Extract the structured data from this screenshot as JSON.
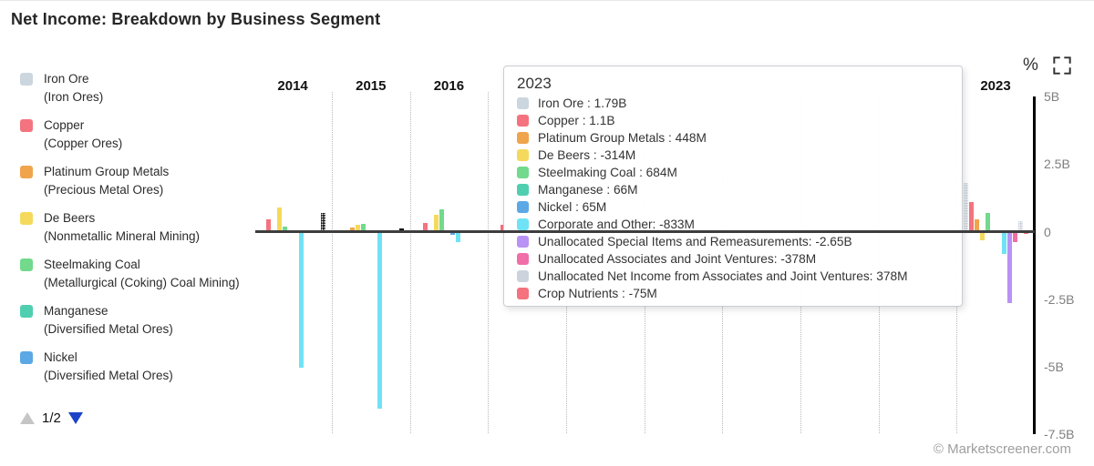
{
  "header": {
    "title": "Net Income: Breakdown by Business Segment"
  },
  "controls": {
    "percent_label": "%",
    "fullscreen_icon": "fullscreen-expand-icon"
  },
  "watermark": "© Marketscreener.com",
  "legend": {
    "page_indicator": "1/2",
    "items": [
      {
        "series": "Iron Ore",
        "sub": "(Iron Ores)"
      },
      {
        "series": "Copper",
        "sub": "(Copper Ores)"
      },
      {
        "series": "Platinum Group Metals",
        "sub": "(Precious Metal Ores)"
      },
      {
        "series": "De Beers",
        "sub": "(Nonmetallic Mineral Mining)"
      },
      {
        "series": "Steelmaking Coal",
        "sub": "(Metallurgical (Coking) Coal Mining)"
      },
      {
        "series": "Manganese",
        "sub": "(Diversified Metal Ores)"
      },
      {
        "series": "Nickel",
        "sub": "(Diversified Metal Ores)"
      }
    ]
  },
  "tooltip": {
    "title": "2023",
    "rows": [
      {
        "series": "Iron Ore",
        "label": "Iron Ore : 1.79B"
      },
      {
        "series": "Copper",
        "label": "Copper : 1.1B"
      },
      {
        "series": "Platinum Group Metals",
        "label": "Platinum Group Metals : 448M"
      },
      {
        "series": "De Beers",
        "label": "De Beers : -314M"
      },
      {
        "series": "Steelmaking Coal",
        "label": "Steelmaking Coal : 684M"
      },
      {
        "series": "Manganese",
        "label": "Manganese : 66M"
      },
      {
        "series": "Nickel",
        "label": "Nickel : 65M"
      },
      {
        "series": "Corporate and Other",
        "label": "Corporate and Other: -833M"
      },
      {
        "series": "Unallocated Special Items and Remeasurements",
        "label": "Unallocated Special Items and Remeasurements: -2.65B"
      },
      {
        "series": "Unallocated Associates and Joint Ventures",
        "label": "Unallocated Associates and Joint Ventures: -378M"
      },
      {
        "series": "Unallocated Net Income from Associates and Joint Ventures",
        "label": "Unallocated Net Income from Associates and Joint Ventures: 378M"
      },
      {
        "series": "Crop Nutrients",
        "label": "Crop Nutrients : -75M"
      }
    ]
  },
  "chart_data": {
    "type": "bar",
    "title": "Net Income: Breakdown by Business Segment",
    "unit": "USD, B = billions, M = millions",
    "years_domain": [
      2014,
      2023
    ],
    "visible_year_labels": [
      "2014",
      "2015",
      "2016",
      "2023"
    ],
    "y_ticks": [
      {
        "label": "5B",
        "value": 5
      },
      {
        "label": "2.5B",
        "value": 2.5
      },
      {
        "label": "0",
        "value": 0
      },
      {
        "label": "-2.5B",
        "value": -2.5
      },
      {
        "label": "-5B",
        "value": -5
      },
      {
        "label": "-7.5B",
        "value": -7.5
      }
    ],
    "ylim_b": [
      -7.5,
      5
    ],
    "grid": "vertical-dotted-year-separators",
    "legend_position": "left",
    "series_order": [
      "Iron Ore",
      "Copper",
      "Platinum Group Metals",
      "De Beers",
      "Steelmaking Coal",
      "Manganese",
      "Nickel",
      "Corporate and Other",
      "Unallocated Special Items and Remeasurements",
      "Unallocated Associates and Joint Ventures",
      "Unallocated Net Income from Associates and Joint Ventures",
      "Crop Nutrients"
    ],
    "series_colors": {
      "Iron Ore": "#ccd6de",
      "Copper": "#f4737e",
      "Platinum Group Metals": "#f0a44c",
      "De Beers": "#f5d95c",
      "Steelmaking Coal": "#72d98d",
      "Manganese": "#4fcfb0",
      "Nickel": "#5ba8e5",
      "Corporate and Other": "#6fe3f5",
      "Unallocated Special Items and Remeasurements": "#b992f5",
      "Unallocated Associates and Joint Ventures": "#f06fa8",
      "Unallocated Net Income from Associates and Joint Ventures": "#ccd3dc",
      "Crop Nutrients": "#f4737e"
    },
    "bars": [
      {
        "year": 2014,
        "series": "Copper",
        "value_b": 0.46
      },
      {
        "year": 2014,
        "series": "De Beers",
        "value_b": 0.88
      },
      {
        "year": 2014,
        "series": "Steelmaking Coal",
        "value_b": 0.2
      },
      {
        "year": 2014,
        "series": "Corporate and Other",
        "value_b": -5.05
      },
      {
        "year": 2014,
        "series": "Unidentified (black patterned bar)",
        "value_b": 0.7,
        "slot": 11,
        "color": "#141414",
        "pattern": true
      },
      {
        "year": 2015,
        "series": "Platinum Group Metals",
        "value_b": 0.15
      },
      {
        "year": 2015,
        "series": "De Beers",
        "value_b": 0.26
      },
      {
        "year": 2015,
        "series": "Steelmaking Coal",
        "value_b": 0.28
      },
      {
        "year": 2015,
        "series": "Corporate and Other",
        "value_b": -6.55
      },
      {
        "year": 2015,
        "series": "Unidentified (black bar)",
        "value_b": 0.12,
        "slot": 11,
        "color": "#141414"
      },
      {
        "year": 2016,
        "series": "Copper",
        "value_b": 0.31
      },
      {
        "year": 2016,
        "series": "De Beers",
        "value_b": 0.63
      },
      {
        "year": 2016,
        "series": "Steelmaking Coal",
        "value_b": 0.83
      },
      {
        "year": 2016,
        "series": "Nickel",
        "value_b": -0.12
      },
      {
        "year": 2016,
        "series": "Corporate and Other",
        "value_b": -0.37
      },
      {
        "year": 2017,
        "series": "Copper",
        "value_b": 0.25
      },
      {
        "year": 2023,
        "series": "Iron Ore",
        "value_b": 1.79,
        "pattern": true
      },
      {
        "year": 2023,
        "series": "Copper",
        "value_b": 1.1
      },
      {
        "year": 2023,
        "series": "Platinum Group Metals",
        "value_b": 0.448
      },
      {
        "year": 2023,
        "series": "De Beers",
        "value_b": -0.314
      },
      {
        "year": 2023,
        "series": "Steelmaking Coal",
        "value_b": 0.684
      },
      {
        "year": 2023,
        "series": "Manganese",
        "value_b": 0.066
      },
      {
        "year": 2023,
        "series": "Nickel",
        "value_b": 0.065
      },
      {
        "year": 2023,
        "series": "Corporate and Other",
        "value_b": -0.833
      },
      {
        "year": 2023,
        "series": "Unallocated Special Items and Remeasurements",
        "value_b": -2.65
      },
      {
        "year": 2023,
        "series": "Unallocated Associates and Joint Ventures",
        "value_b": -0.378
      },
      {
        "year": 2023,
        "series": "Unallocated Net Income from Associates and Joint Ventures",
        "value_b": 0.378,
        "pattern": true
      },
      {
        "year": 2023,
        "series": "Crop Nutrients",
        "value_b": -0.075
      }
    ]
  }
}
